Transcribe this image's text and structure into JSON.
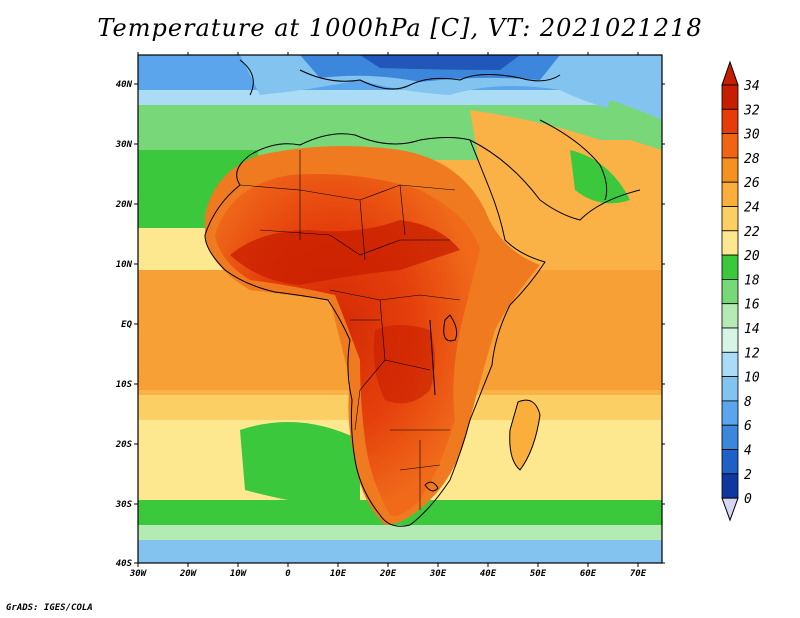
{
  "title": "Temperature at 1000hPa [C], VT: 2021021218",
  "credit": "GrADS: IGES/COLA",
  "map": {
    "lon_ticks": [
      "30W",
      "20W",
      "10W",
      "0",
      "10E",
      "20E",
      "30E",
      "40E",
      "50E",
      "60E",
      "70E"
    ],
    "lat_ticks": [
      "40N",
      "30N",
      "20N",
      "10N",
      "EQ",
      "10S",
      "20S",
      "30S",
      "40S"
    ],
    "lon_range": [
      -30,
      75
    ],
    "lat_range": [
      -40,
      44
    ]
  },
  "colorbar": {
    "labels": [
      "34",
      "32",
      "30",
      "28",
      "26",
      "24",
      "22",
      "20",
      "18",
      "16",
      "14",
      "12",
      "10",
      "8",
      "6",
      "4",
      "2",
      "0"
    ],
    "colors_top_to_bottom": [
      "#c81e00",
      "#e63c0a",
      "#f06414",
      "#f5911e",
      "#faaf3c",
      "#fccf64",
      "#fde88f",
      "#3cc83c",
      "#78d778",
      "#b4ebb4",
      "#d7f5e6",
      "#aadcf5",
      "#82c3f0",
      "#5aa5eb",
      "#3c87dc",
      "#1e5fc8",
      "#0f37a0",
      "#0a1478"
    ],
    "units": "C"
  }
}
